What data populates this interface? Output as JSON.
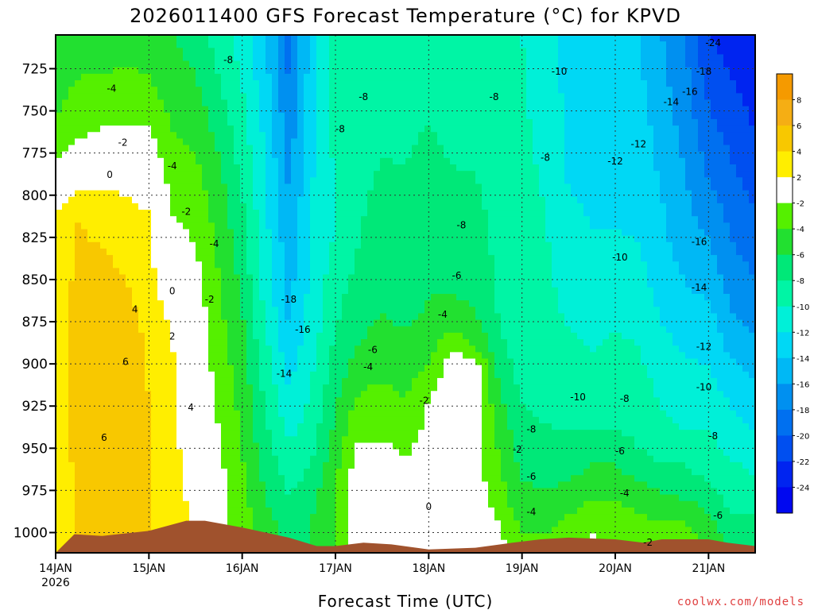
{
  "chart_data": {
    "type": "heatmap",
    "title": "2026011400 GFS Forecast Temperature (°C) for KPVD",
    "xlabel": "Forecast Time (UTC)",
    "ylabel": "",
    "credit": "coolwx.com/models",
    "yaxis": {
      "scale": "reversed",
      "range": [
        1012,
        705
      ],
      "ticks": [
        "725",
        "750",
        "775",
        "800",
        "825",
        "850",
        "875",
        "900",
        "925",
        "950",
        "975",
        "1000"
      ]
    },
    "xaxis": {
      "range": [
        0,
        7.5
      ],
      "ticks": [
        {
          "value": 0,
          "label": "14JAN",
          "sub": "2026"
        },
        {
          "value": 1,
          "label": "15JAN",
          "sub": ""
        },
        {
          "value": 2,
          "label": "16JAN",
          "sub": ""
        },
        {
          "value": 3,
          "label": "17JAN",
          "sub": ""
        },
        {
          "value": 4,
          "label": "18JAN",
          "sub": ""
        },
        {
          "value": 5,
          "label": "19JAN",
          "sub": ""
        },
        {
          "value": 6,
          "label": "20JAN",
          "sub": ""
        },
        {
          "value": 7,
          "label": "21JAN",
          "sub": ""
        }
      ]
    },
    "grid": true,
    "colorbar": {
      "placement": "right",
      "levels": [
        {
          "label": "8",
          "color": "#f59a00"
        },
        {
          "label": "6",
          "color": "#f5ae14"
        },
        {
          "label": "4",
          "color": "#f8c800"
        },
        {
          "label": "2",
          "color": "#ffee00"
        },
        {
          "label": "-2",
          "color": "#ffffff"
        },
        {
          "label": "-4",
          "color": "#55f000"
        },
        {
          "label": "-6",
          "color": "#22e030"
        },
        {
          "label": "-8",
          "color": "#00e878"
        },
        {
          "label": "-10",
          "color": "#00f5a5"
        },
        {
          "label": "-12",
          "color": "#00f0d8"
        },
        {
          "label": "-14",
          "color": "#00d8f5"
        },
        {
          "label": "-16",
          "color": "#00b8f5"
        },
        {
          "label": "-18",
          "color": "#0090f0"
        },
        {
          "label": "-20",
          "color": "#0070f0"
        },
        {
          "label": "-22",
          "color": "#004ff0"
        },
        {
          "label": "-24",
          "color": "#0024f0"
        },
        {
          "label": "",
          "color": "#0008f0"
        }
      ]
    },
    "columns": [
      {
        "t": 0.0,
        "bands": [
          [
            705,
            -5
          ],
          [
            760,
            -4
          ],
          [
            790,
            -1
          ],
          [
            820,
            3
          ],
          [
            1010,
            3
          ]
        ]
      },
      {
        "t": 0.25,
        "bands": [
          [
            705,
            -5
          ],
          [
            755,
            -3
          ],
          [
            780,
            -1
          ],
          [
            810,
            4
          ],
          [
            900,
            5
          ],
          [
            1010,
            4
          ]
        ]
      },
      {
        "t": 0.5,
        "bands": [
          [
            705,
            -5
          ],
          [
            750,
            -3
          ],
          [
            770,
            -1
          ],
          [
            795,
            2
          ],
          [
            830,
            4
          ],
          [
            880,
            6
          ],
          [
            1010,
            5
          ]
        ]
      },
      {
        "t": 0.75,
        "bands": [
          [
            705,
            -5
          ],
          [
            745,
            -3
          ],
          [
            770,
            -1
          ],
          [
            800,
            2
          ],
          [
            850,
            4
          ],
          [
            900,
            6
          ],
          [
            1010,
            5
          ]
        ]
      },
      {
        "t": 1.0,
        "bands": [
          [
            705,
            -5
          ],
          [
            750,
            -3
          ],
          [
            770,
            -1
          ],
          [
            810,
            2
          ],
          [
            860,
            3
          ],
          [
            920,
            4
          ],
          [
            1010,
            4
          ]
        ]
      },
      {
        "t": 1.25,
        "bands": [
          [
            705,
            -6
          ],
          [
            790,
            -3
          ],
          [
            830,
            -1
          ],
          [
            880,
            2
          ],
          [
            1010,
            3
          ]
        ]
      },
      {
        "t": 1.5,
        "bands": [
          [
            705,
            -7
          ],
          [
            800,
            -3
          ],
          [
            860,
            -1
          ],
          [
            1010,
            2
          ]
        ]
      },
      {
        "t": 1.75,
        "bands": [
          [
            705,
            -9
          ],
          [
            800,
            -5
          ],
          [
            900,
            -3
          ],
          [
            980,
            -1
          ],
          [
            1010,
            -1
          ]
        ]
      },
      {
        "t": 2.0,
        "bands": [
          [
            705,
            -11
          ],
          [
            800,
            -8
          ],
          [
            900,
            -5
          ],
          [
            1000,
            -3
          ]
        ]
      },
      {
        "t": 2.25,
        "bands": [
          [
            705,
            -14
          ],
          [
            780,
            -12
          ],
          [
            850,
            -11
          ],
          [
            930,
            -8
          ],
          [
            1000,
            -5
          ]
        ]
      },
      {
        "t": 2.5,
        "bands": [
          [
            705,
            -19
          ],
          [
            800,
            -16
          ],
          [
            880,
            -14
          ],
          [
            930,
            -11
          ],
          [
            980,
            -8
          ],
          [
            1010,
            -6
          ]
        ]
      },
      {
        "t": 2.75,
        "bands": [
          [
            705,
            -13
          ],
          [
            800,
            -12
          ],
          [
            880,
            -11
          ],
          [
            940,
            -9
          ],
          [
            990,
            -6
          ]
        ]
      },
      {
        "t": 3.0,
        "bands": [
          [
            705,
            -9
          ],
          [
            820,
            -10
          ],
          [
            880,
            -8
          ],
          [
            930,
            -6
          ],
          [
            970,
            -4
          ]
        ]
      },
      {
        "t": 3.25,
        "bands": [
          [
            705,
            -9
          ],
          [
            830,
            -8
          ],
          [
            890,
            -6
          ],
          [
            930,
            -3
          ],
          [
            960,
            -1
          ],
          [
            1010,
            1
          ]
        ]
      },
      {
        "t": 3.5,
        "bands": [
          [
            705,
            -9
          ],
          [
            850,
            -7
          ],
          [
            890,
            -5
          ],
          [
            930,
            -3
          ],
          [
            960,
            -1
          ],
          [
            1010,
            -1
          ]
        ]
      },
      {
        "t": 3.75,
        "bands": [
          [
            705,
            -9
          ],
          [
            860,
            -7
          ],
          [
            900,
            -5
          ],
          [
            940,
            -3
          ],
          [
            970,
            -1
          ],
          [
            1010,
            1
          ]
        ]
      },
      {
        "t": 4.0,
        "bands": [
          [
            705,
            -9
          ],
          [
            860,
            -6
          ],
          [
            890,
            -5
          ],
          [
            920,
            -2
          ],
          [
            960,
            -1
          ],
          [
            1010,
            -1
          ]
        ]
      },
      {
        "t": 4.25,
        "bands": [
          [
            705,
            -10
          ],
          [
            860,
            -6
          ],
          [
            880,
            -4
          ],
          [
            900,
            -1
          ],
          [
            950,
            -1
          ],
          [
            1010,
            1
          ]
        ]
      },
      {
        "t": 4.5,
        "bands": [
          [
            705,
            -10
          ],
          [
            870,
            -6
          ],
          [
            890,
            -4
          ],
          [
            900,
            -1
          ],
          [
            980,
            -1
          ],
          [
            1010,
            0
          ]
        ]
      },
      {
        "t": 4.75,
        "bands": [
          [
            705,
            -10
          ],
          [
            880,
            -8
          ],
          [
            930,
            -5
          ],
          [
            980,
            -3
          ],
          [
            1010,
            -1
          ]
        ]
      },
      {
        "t": 5.0,
        "bands": [
          [
            705,
            -10
          ],
          [
            900,
            -9
          ],
          [
            950,
            -7
          ],
          [
            990,
            -5
          ],
          [
            1010,
            -3
          ]
        ]
      },
      {
        "t": 5.25,
        "bands": [
          [
            705,
            -11
          ],
          [
            910,
            -9
          ],
          [
            960,
            -7
          ],
          [
            1000,
            -4
          ]
        ]
      },
      {
        "t": 5.5,
        "bands": [
          [
            705,
            -13
          ],
          [
            800,
            -12
          ],
          [
            920,
            -9
          ],
          [
            960,
            -7
          ],
          [
            990,
            -4
          ],
          [
            1010,
            -3
          ]
        ]
      },
      {
        "t": 5.75,
        "bands": [
          [
            705,
            -13
          ],
          [
            820,
            -12
          ],
          [
            930,
            -9
          ],
          [
            970,
            -5
          ],
          [
            990,
            -3
          ],
          [
            1010,
            -1
          ]
        ]
      },
      {
        "t": 6.0,
        "bands": [
          [
            705,
            -14
          ],
          [
            820,
            -12
          ],
          [
            940,
            -8
          ],
          [
            970,
            -5
          ],
          [
            990,
            -3
          ]
        ]
      },
      {
        "t": 6.25,
        "bands": [
          [
            705,
            -14
          ],
          [
            830,
            -12
          ],
          [
            950,
            -8
          ],
          [
            980,
            -5
          ],
          [
            1000,
            -3
          ]
        ]
      },
      {
        "t": 6.5,
        "bands": [
          [
            705,
            -16
          ],
          [
            850,
            -13
          ],
          [
            950,
            -9
          ],
          [
            985,
            -5
          ],
          [
            1000,
            -3
          ]
        ]
      },
      {
        "t": 6.75,
        "bands": [
          [
            705,
            -18
          ],
          [
            830,
            -15
          ],
          [
            940,
            -10
          ],
          [
            980,
            -6
          ],
          [
            1000,
            -3
          ]
        ]
      },
      {
        "t": 7.0,
        "bands": [
          [
            705,
            -22
          ],
          [
            790,
            -18
          ],
          [
            880,
            -13
          ],
          [
            960,
            -9
          ],
          [
            1000,
            -5
          ]
        ]
      },
      {
        "t": 7.25,
        "bands": [
          [
            705,
            -23
          ],
          [
            780,
            -20
          ],
          [
            870,
            -16
          ],
          [
            940,
            -11
          ],
          [
            990,
            -8
          ],
          [
            1010,
            -6
          ]
        ]
      },
      {
        "t": 7.5,
        "bands": [
          [
            705,
            -24
          ],
          [
            790,
            -21
          ],
          [
            870,
            -17
          ],
          [
            940,
            -12
          ],
          [
            990,
            -8
          ],
          [
            1010,
            -7
          ]
        ]
      }
    ],
    "terrain": {
      "color": "#a0522d",
      "points": [
        [
          0,
          1012
        ],
        [
          0.2,
          1001
        ],
        [
          0.5,
          1002
        ],
        [
          1.0,
          999
        ],
        [
          1.4,
          993
        ],
        [
          1.6,
          993
        ],
        [
          2.0,
          997
        ],
        [
          2.5,
          1003
        ],
        [
          2.8,
          1008
        ],
        [
          3.0,
          1008
        ],
        [
          3.3,
          1006
        ],
        [
          3.6,
          1007
        ],
        [
          4.0,
          1010
        ],
        [
          4.5,
          1009
        ],
        [
          4.9,
          1006
        ],
        [
          5.2,
          1004
        ],
        [
          5.5,
          1003
        ],
        [
          6.0,
          1004
        ],
        [
          6.3,
          1006
        ],
        [
          6.5,
          1004
        ],
        [
          7.0,
          1004
        ],
        [
          7.2,
          1006
        ],
        [
          7.5,
          1008
        ]
      ]
    },
    "contour_labels": [
      {
        "t": 0.6,
        "p": 737,
        "text": "-4"
      },
      {
        "t": 0.72,
        "p": 769,
        "text": "-2"
      },
      {
        "t": 0.58,
        "p": 788,
        "text": "0"
      },
      {
        "t": 1.25,
        "p": 783,
        "text": "-4"
      },
      {
        "t": 1.4,
        "p": 810,
        "text": "-2"
      },
      {
        "t": 1.7,
        "p": 829,
        "text": "-4"
      },
      {
        "t": 1.25,
        "p": 857,
        "text": "0"
      },
      {
        "t": 1.65,
        "p": 862,
        "text": "-2"
      },
      {
        "t": 0.85,
        "p": 868,
        "text": "4"
      },
      {
        "t": 1.25,
        "p": 884,
        "text": "2"
      },
      {
        "t": 0.75,
        "p": 899,
        "text": "6"
      },
      {
        "t": 1.45,
        "p": 926,
        "text": "4"
      },
      {
        "t": 0.52,
        "p": 944,
        "text": "6"
      },
      {
        "t": 1.85,
        "p": 720,
        "text": "-8"
      },
      {
        "t": 3.3,
        "p": 742,
        "text": "-8"
      },
      {
        "t": 3.05,
        "p": 761,
        "text": "-8"
      },
      {
        "t": 2.5,
        "p": 862,
        "text": "-18"
      },
      {
        "t": 2.65,
        "p": 880,
        "text": "-16"
      },
      {
        "t": 2.45,
        "p": 906,
        "text": "-14"
      },
      {
        "t": 3.4,
        "p": 892,
        "text": "-6"
      },
      {
        "t": 3.35,
        "p": 902,
        "text": "-4"
      },
      {
        "t": 4.15,
        "p": 871,
        "text": "-4"
      },
      {
        "t": 4.3,
        "p": 848,
        "text": "-6"
      },
      {
        "t": 4.35,
        "p": 818,
        "text": "-8"
      },
      {
        "t": 4.7,
        "p": 742,
        "text": "-8"
      },
      {
        "t": 3.95,
        "p": 922,
        "text": "-2"
      },
      {
        "t": 4.0,
        "p": 985,
        "text": "0"
      },
      {
        "t": 4.95,
        "p": 951,
        "text": "-2"
      },
      {
        "t": 5.1,
        "p": 939,
        "text": "-8"
      },
      {
        "t": 5.1,
        "p": 967,
        "text": "-6"
      },
      {
        "t": 5.1,
        "p": 988,
        "text": "-4"
      },
      {
        "t": 5.4,
        "p": 727,
        "text": "-10"
      },
      {
        "t": 5.25,
        "p": 778,
        "text": "-8"
      },
      {
        "t": 6.0,
        "p": 780,
        "text": "-12"
      },
      {
        "t": 6.25,
        "p": 770,
        "text": "-12"
      },
      {
        "t": 6.05,
        "p": 837,
        "text": "-10"
      },
      {
        "t": 5.6,
        "p": 920,
        "text": "-10"
      },
      {
        "t": 6.1,
        "p": 921,
        "text": "-8"
      },
      {
        "t": 6.05,
        "p": 952,
        "text": "-6"
      },
      {
        "t": 6.1,
        "p": 977,
        "text": "-4"
      },
      {
        "t": 6.35,
        "p": 1006,
        "text": "-2"
      },
      {
        "t": 6.6,
        "p": 745,
        "text": "-14"
      },
      {
        "t": 6.8,
        "p": 739,
        "text": "-16"
      },
      {
        "t": 6.95,
        "p": 727,
        "text": "-18"
      },
      {
        "t": 7.05,
        "p": 710,
        "text": "-24"
      },
      {
        "t": 6.9,
        "p": 828,
        "text": "-16"
      },
      {
        "t": 6.9,
        "p": 855,
        "text": "-14"
      },
      {
        "t": 6.95,
        "p": 890,
        "text": "-12"
      },
      {
        "t": 6.95,
        "p": 914,
        "text": "-10"
      },
      {
        "t": 7.05,
        "p": 943,
        "text": "-8"
      },
      {
        "t": 7.1,
        "p": 990,
        "text": "-6"
      }
    ]
  }
}
